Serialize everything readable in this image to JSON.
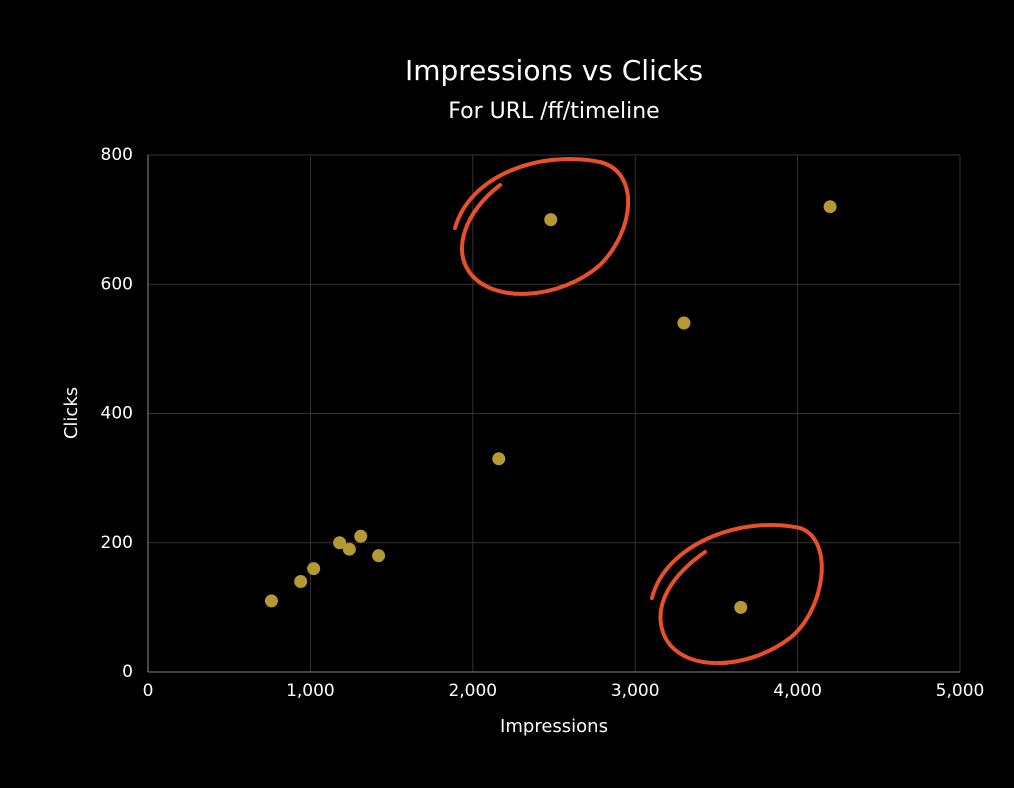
{
  "chart_data": {
    "type": "scatter",
    "title": "Impressions vs Clicks",
    "subtitle": "For URL /ff/timeline",
    "x_label": "Impressions",
    "y_label": "Clicks",
    "series": [
      {
        "color": "#b59a34",
        "x": [
          760,
          940,
          1020,
          1180,
          1240,
          1310,
          1420,
          2160,
          2480,
          3300,
          3650,
          4200
        ],
        "values": [
          110,
          140,
          160,
          200,
          190,
          210,
          180,
          330,
          700,
          540,
          100,
          720
        ]
      }
    ],
    "xlim": [
      0,
      5000
    ],
    "xticks": [
      0,
      {
        "value": 1000,
        "label": "1,000"
      },
      {
        "value": 2000,
        "label": "2,000"
      },
      {
        "value": 3000,
        "label": "3,000"
      },
      {
        "value": 4000,
        "label": "4,000"
      },
      {
        "value": 5000,
        "label": "5,000"
      }
    ],
    "ylim": [
      0,
      800
    ],
    "yticks": [
      0,
      200,
      400,
      600,
      800
    ],
    "grid": true
  }
}
